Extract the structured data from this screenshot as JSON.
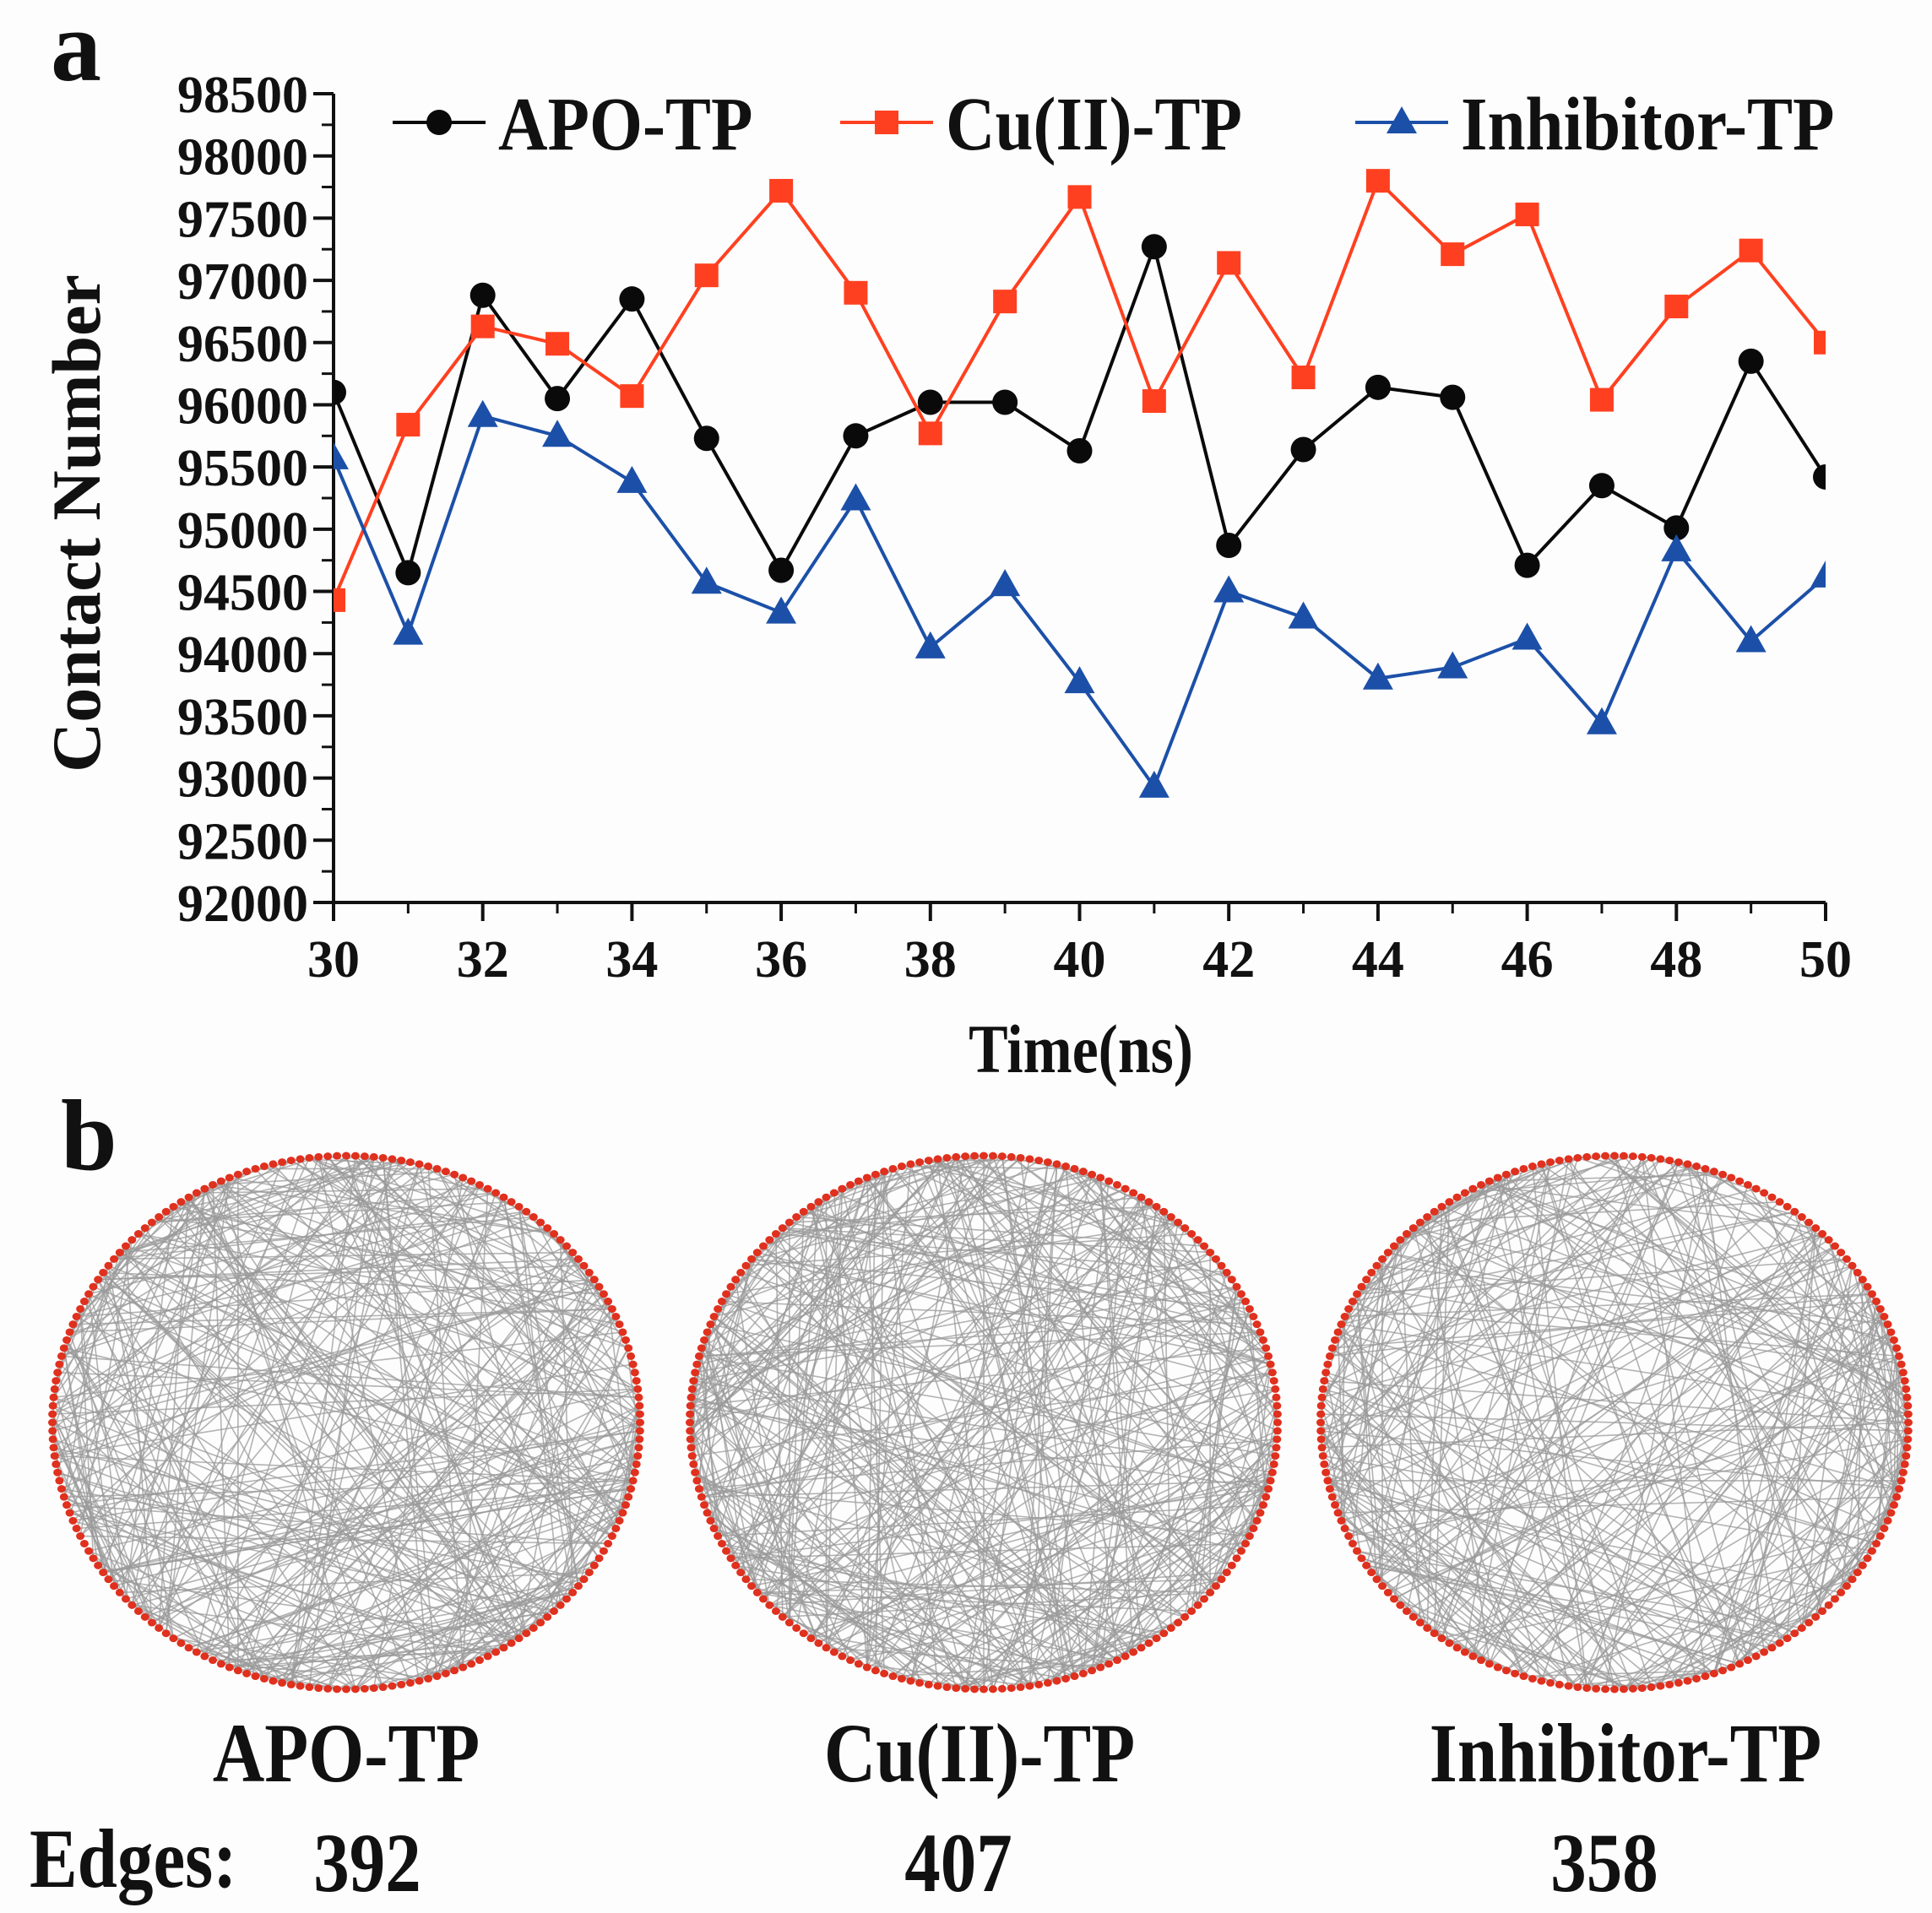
{
  "panel_a_label": "a",
  "panel_b_label": "b",
  "chart_data": {
    "type": "line",
    "xlabel": "Time(ns)",
    "ylabel": "Contact Number",
    "xlim": [
      30,
      50
    ],
    "ylim": [
      92000,
      98500
    ],
    "xticks": [
      "30",
      "32",
      "34",
      "36",
      "38",
      "40",
      "42",
      "44",
      "46",
      "48",
      "50"
    ],
    "yticks": [
      "92000",
      "92500",
      "93000",
      "93500",
      "94000",
      "94500",
      "95000",
      "95500",
      "96000",
      "96500",
      "97000",
      "97500",
      "98000",
      "98500"
    ],
    "legend_position": "top",
    "x": [
      30,
      31,
      32,
      33,
      34,
      35,
      36,
      37,
      38,
      39,
      40,
      41,
      42,
      43,
      44,
      45,
      46,
      47,
      48,
      49,
      50
    ],
    "series": [
      {
        "name": "APO-TP",
        "color": "#0a0a0a",
        "marker": "circle",
        "values": [
          96100,
          94650,
          96880,
          96050,
          96850,
          95730,
          94670,
          95750,
          96020,
          96020,
          95630,
          97270,
          94870,
          95640,
          96140,
          96060,
          94710,
          95350,
          95010,
          96350,
          95420
        ]
      },
      {
        "name": "Cu(II)-TP",
        "color": "#ff4020",
        "marker": "square",
        "values": [
          94430,
          95840,
          96630,
          96490,
          96070,
          97040,
          97720,
          96900,
          95770,
          96830,
          97670,
          96030,
          97140,
          96220,
          97800,
          97210,
          97530,
          96040,
          96790,
          97240,
          96500
        ]
      },
      {
        "name": "Inhibitor-TP",
        "color": "#1c50a8",
        "marker": "triangle",
        "values": [
          95570,
          94160,
          95910,
          95750,
          95380,
          94570,
          94330,
          95240,
          94050,
          94550,
          93770,
          92930,
          94500,
          94290,
          93800,
          93890,
          94120,
          93440,
          94830,
          94100,
          94620
        ]
      }
    ]
  },
  "networks": [
    {
      "name": "APO-TP",
      "edges_label": "Edges:",
      "edges": 392,
      "edges_text": "392",
      "seed": 7
    },
    {
      "name": "Cu(II)-TP",
      "edges": 407,
      "edges_text": "407",
      "seed": 19
    },
    {
      "name": "Inhibitor-TP",
      "edges": 358,
      "edges_text": "358",
      "seed": 41
    }
  ],
  "colors": {
    "node": "#e0301e",
    "edge": "#9a9a9a"
  }
}
